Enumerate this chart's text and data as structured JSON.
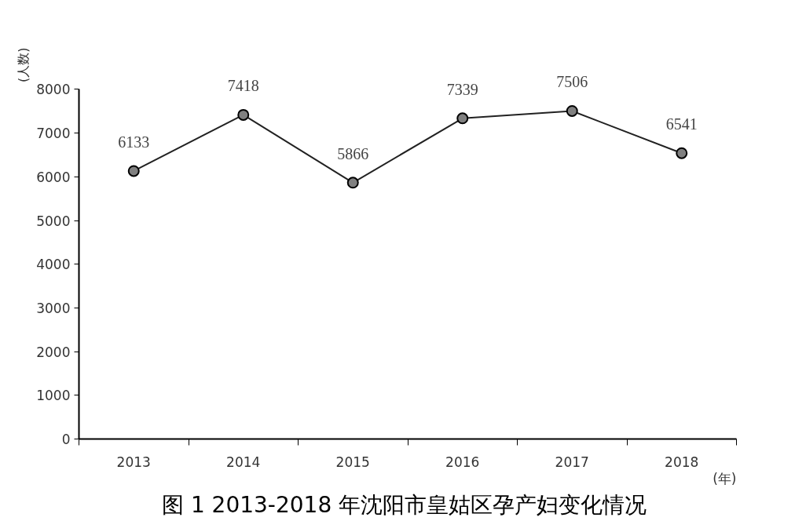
{
  "chart_data": {
    "type": "line",
    "title": "图 1  2013-2018 年沈阳市皇姑区孕产妇变化情况",
    "xlabel": "(年)",
    "ylabel": "(人数)",
    "categories": [
      "2013",
      "2014",
      "2015",
      "2016",
      "2017",
      "2018"
    ],
    "series": [
      {
        "color": "#222222",
        "values": [
          6133,
          7418,
          5866,
          7339,
          7506,
          6541
        ]
      }
    ],
    "ylim": [
      0,
      8000
    ],
    "yticks": [
      0,
      1000,
      2000,
      3000,
      4000,
      5000,
      6000,
      7000,
      8000
    ],
    "marker": "circle",
    "data_labels": true
  }
}
